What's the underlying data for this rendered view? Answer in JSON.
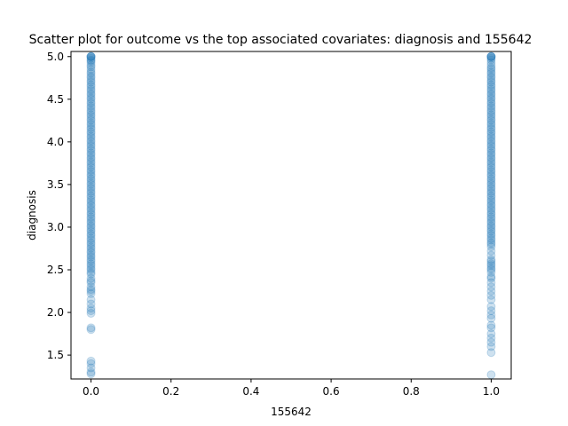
{
  "chart_data": {
    "type": "scatter",
    "title": "Scatter plot for outcome vs the top associated covariates: diagnosis and 155642",
    "xlabel": "155642",
    "ylabel": "diagnosis",
    "xlim": [
      -0.05,
      1.05
    ],
    "ylim": [
      1.22,
      5.06
    ],
    "xticks": [
      0.0,
      0.2,
      0.4,
      0.6,
      0.8,
      1.0
    ],
    "xtick_labels": [
      "0.0",
      "0.2",
      "0.4",
      "0.6",
      "0.8",
      "1.0"
    ],
    "yticks": [
      1.5,
      2.0,
      2.5,
      3.0,
      3.5,
      4.0,
      4.5,
      5.0
    ],
    "ytick_labels": [
      "1.5",
      "2.0",
      "2.5",
      "3.0",
      "3.5",
      "4.0",
      "4.5",
      "5.0"
    ],
    "point_color": "#1f77b4",
    "point_alpha": 0.22,
    "grid": false,
    "legend": "none",
    "series": [
      {
        "x": 0.0,
        "y": [
          5.0,
          5.0,
          5.0,
          5.0,
          4.98,
          4.96,
          4.95,
          4.93,
          4.9,
          4.88,
          4.85,
          4.82,
          4.8,
          4.77,
          4.75,
          4.72,
          4.7,
          4.67,
          4.65,
          4.62,
          4.6,
          4.57,
          4.55,
          4.52,
          4.5,
          4.47,
          4.45,
          4.42,
          4.4,
          4.37,
          4.35,
          4.32,
          4.3,
          4.27,
          4.25,
          4.22,
          4.2,
          4.17,
          4.15,
          4.12,
          4.1,
          4.07,
          4.05,
          4.02,
          4.0,
          3.97,
          3.95,
          3.92,
          3.9,
          3.87,
          3.85,
          3.82,
          3.8,
          3.77,
          3.75,
          3.72,
          3.7,
          3.67,
          3.65,
          3.62,
          3.6,
          3.57,
          3.55,
          3.52,
          3.5,
          3.47,
          3.45,
          3.42,
          3.4,
          3.37,
          3.35,
          3.32,
          3.3,
          3.27,
          3.25,
          3.22,
          3.2,
          3.17,
          3.15,
          3.12,
          3.1,
          3.07,
          3.05,
          3.02,
          3.0,
          2.97,
          2.95,
          2.92,
          2.9,
          2.87,
          2.85,
          2.82,
          2.8,
          2.77,
          2.75,
          2.72,
          2.7,
          2.67,
          2.65,
          2.62,
          2.6,
          2.57,
          2.55,
          2.52,
          2.5,
          2.47,
          2.45,
          2.4,
          2.37,
          2.35,
          2.3,
          2.27,
          2.25,
          2.22,
          2.15,
          2.1,
          2.05,
          2.02,
          1.99,
          1.82,
          1.8,
          1.43,
          1.4,
          1.35,
          1.3,
          1.28
        ]
      },
      {
        "x": 1.0,
        "y": [
          5.0,
          5.0,
          5.0,
          5.0,
          4.98,
          4.96,
          4.93,
          4.9,
          4.87,
          4.85,
          4.82,
          4.8,
          4.77,
          4.75,
          4.72,
          4.7,
          4.67,
          4.65,
          4.62,
          4.6,
          4.57,
          4.55,
          4.52,
          4.5,
          4.47,
          4.45,
          4.42,
          4.4,
          4.37,
          4.35,
          4.32,
          4.3,
          4.27,
          4.25,
          4.22,
          4.2,
          4.17,
          4.15,
          4.12,
          4.1,
          4.07,
          4.05,
          4.02,
          4.0,
          3.97,
          3.95,
          3.92,
          3.9,
          3.87,
          3.85,
          3.82,
          3.8,
          3.77,
          3.75,
          3.72,
          3.7,
          3.67,
          3.65,
          3.62,
          3.6,
          3.57,
          3.55,
          3.52,
          3.5,
          3.47,
          3.45,
          3.42,
          3.4,
          3.37,
          3.35,
          3.32,
          3.3,
          3.27,
          3.25,
          3.22,
          3.2,
          3.17,
          3.15,
          3.12,
          3.1,
          3.07,
          3.05,
          3.02,
          3.0,
          2.97,
          2.95,
          2.92,
          2.9,
          2.87,
          2.85,
          2.82,
          2.8,
          2.77,
          2.72,
          2.67,
          2.62,
          2.6,
          2.57,
          2.55,
          2.52,
          2.5,
          2.47,
          2.42,
          2.4,
          2.35,
          2.3,
          2.25,
          2.2,
          2.15,
          2.07,
          2.02,
          1.97,
          1.93,
          1.85,
          1.82,
          1.75,
          1.7,
          1.65,
          1.6,
          1.53,
          1.27
        ]
      }
    ]
  }
}
